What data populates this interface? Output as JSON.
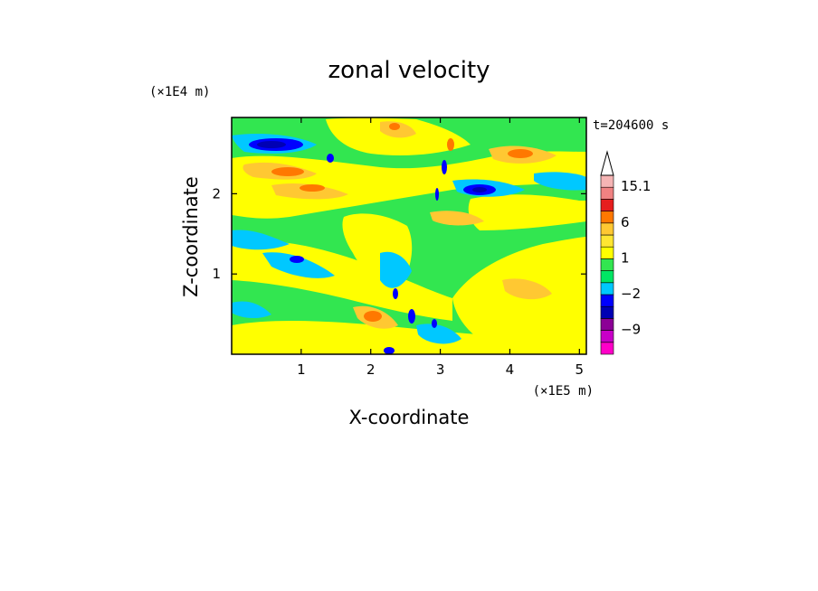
{
  "chart_data": {
    "type": "heatmap",
    "title": "zonal velocity",
    "xlabel": "X-coordinate",
    "ylabel": "Z-coordinate",
    "x_unit": "(×1E5 m)",
    "y_unit": "(×1E4 m)",
    "time_label": "t=204600 s",
    "xlim": [
      0,
      5.1
    ],
    "ylim": [
      0,
      2.95
    ],
    "x_ticks": [
      "1",
      "2",
      "3",
      "4",
      "5"
    ],
    "y_ticks": [
      "1",
      "2"
    ],
    "x_tick_values": [
      1,
      2,
      3,
      4,
      5
    ],
    "y_tick_values": [
      1,
      2
    ],
    "colorbar": {
      "labels": [
        {
          "text": "15.1",
          "level": 15.1
        },
        {
          "text": "6",
          "level": 6
        },
        {
          "text": "1",
          "level": 1
        },
        {
          "text": "−2",
          "level": -2
        },
        {
          "text": "−9",
          "level": -9
        }
      ],
      "levels": [
        -15,
        -12,
        -9,
        -6,
        -3,
        -2,
        -1,
        0,
        1,
        2,
        3,
        6,
        9,
        12,
        15.1
      ],
      "colors": [
        "#ff00c8",
        "#c800c8",
        "#8c0096",
        "#0000b4",
        "#0000ff",
        "#00c8ff",
        "#00e664",
        "#32e650",
        "#ffff00",
        "#ffe632",
        "#ffc832",
        "#ff7800",
        "#e61e1e",
        "#f08282",
        "#f5b4b4"
      ]
    },
    "grid": false,
    "legend": "right"
  }
}
